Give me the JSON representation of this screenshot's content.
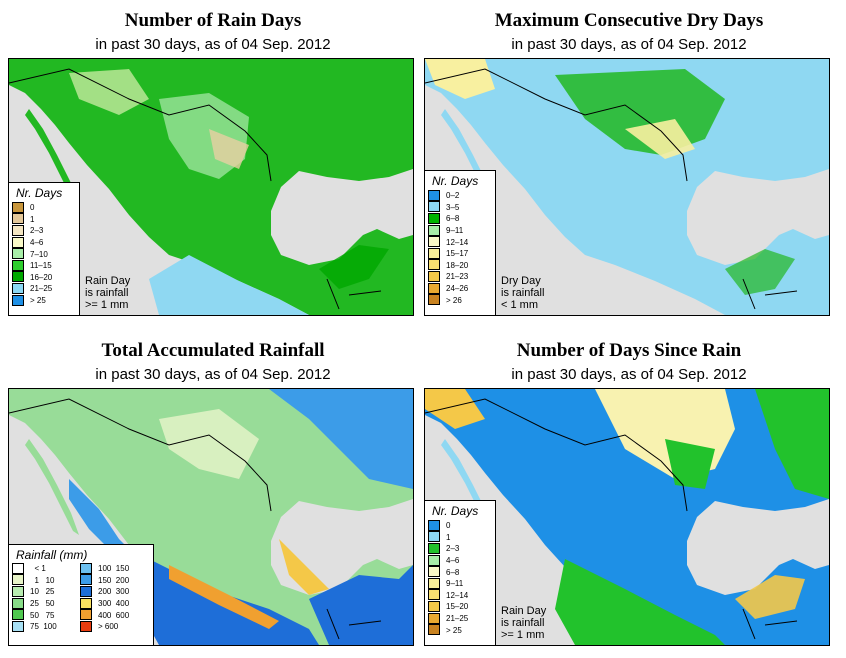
{
  "colors": {
    "land_green": "#22c22c",
    "light_green": "#8fe08f",
    "light_blue": "#8fd8f2",
    "blue": "#1f8fe6",
    "tan": "#e8cfa2",
    "pale_yellow": "#f8f2b0",
    "ocean": "#e0e0e0",
    "border": "#000000"
  },
  "panels": [
    {
      "title": "Number of Rain Days",
      "subtitle": "in past 30 days, as of  04 Sep. 2012",
      "legend_title": "Nr. Days",
      "legend": [
        {
          "label": "0",
          "color": "#c8963c"
        },
        {
          "label": "1",
          "color": "#e4c89a"
        },
        {
          "label": "2–3",
          "color": "#f4e6c2"
        },
        {
          "label": "4–6",
          "color": "#fafac8"
        },
        {
          "label": "7–10",
          "color": "#a8eea8"
        },
        {
          "label": "11–15",
          "color": "#2ece2e"
        },
        {
          "label": "16–20",
          "color": "#00a800"
        },
        {
          "label": "21–25",
          "color": "#8cd8f4"
        },
        {
          "label": "> 25",
          "color": "#1e90e6"
        }
      ],
      "note": [
        "Rain Day",
        "is rainfall",
        ">= 1 mm"
      ]
    },
    {
      "title": "Maximum Consecutive Dry Days",
      "subtitle": "in past 30 days, as of  04 Sep. 2012",
      "legend_title": "Nr. Days",
      "legend": [
        {
          "label": "0–2",
          "color": "#1e90e6"
        },
        {
          "label": "3–5",
          "color": "#8cd8f4"
        },
        {
          "label": "6–8",
          "color": "#00b400"
        },
        {
          "label": "9–11",
          "color": "#a8eea8"
        },
        {
          "label": "12–14",
          "color": "#fafac8"
        },
        {
          "label": "15–17",
          "color": "#f8f09a"
        },
        {
          "label": "18–20",
          "color": "#f8e070"
        },
        {
          "label": "21–23",
          "color": "#f4c848"
        },
        {
          "label": "24–26",
          "color": "#e8a830"
        },
        {
          "label": "> 26",
          "color": "#c88220"
        }
      ],
      "note": [
        "Dry Day",
        "is rainfall",
        "< 1 mm"
      ]
    },
    {
      "title": "Total Accumulated Rainfall",
      "subtitle": "in past 30 days, as of  04 Sep. 2012",
      "legend_title": "Rainfall (mm)",
      "legend": [
        {
          "label": "  < 1",
          "color": "#ffffff"
        },
        {
          "label": "  1   10",
          "color": "#e8f4c8"
        },
        {
          "label": "10   25",
          "color": "#b8ecb0"
        },
        {
          "label": "25   50",
          "color": "#88dc88"
        },
        {
          "label": "50   75",
          "color": "#50c850"
        },
        {
          "label": "75  100",
          "color": "#a8e0f4"
        },
        {
          "label": "100  150",
          "color": "#6cc0f0"
        },
        {
          "label": "150  200",
          "color": "#3c9ce8"
        },
        {
          "label": "200  300",
          "color": "#1e6ed8"
        },
        {
          "label": "300  400",
          "color": "#f8e060"
        },
        {
          "label": "400  600",
          "color": "#f0a030"
        },
        {
          "label": "> 600",
          "color": "#e83c10"
        }
      ]
    },
    {
      "title": "Number of Days Since Rain",
      "subtitle": "in past 30 days, as of  04 Sep. 2012",
      "legend_title": "Nr. Days",
      "legend": [
        {
          "label": "0",
          "color": "#1e90e6"
        },
        {
          "label": "1",
          "color": "#8cd8f4"
        },
        {
          "label": "2–3",
          "color": "#22c22c"
        },
        {
          "label": "4–6",
          "color": "#a8eea8"
        },
        {
          "label": "6–8",
          "color": "#fafac8"
        },
        {
          "label": "9–11",
          "color": "#f8f09a"
        },
        {
          "label": "12–14",
          "color": "#f8e070"
        },
        {
          "label": "15–20",
          "color": "#f4c848"
        },
        {
          "label": "21–25",
          "color": "#e8a830"
        },
        {
          "label": "> 25",
          "color": "#c88220"
        }
      ],
      "note": [
        "Rain Day",
        "is rainfall",
        ">= 1 mm"
      ]
    }
  ]
}
